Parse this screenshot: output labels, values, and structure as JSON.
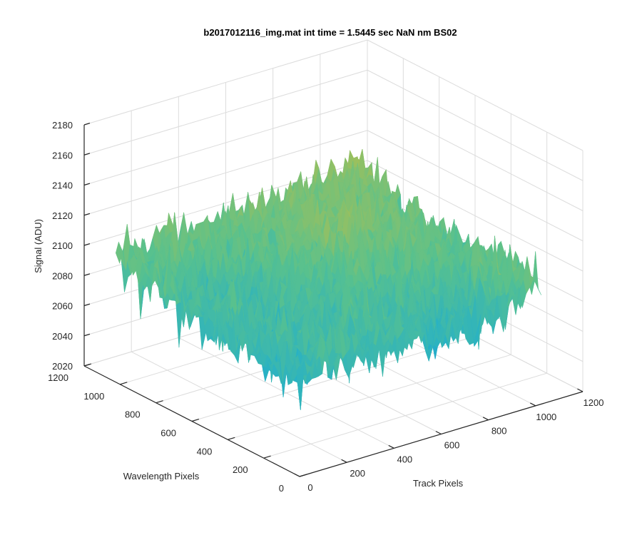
{
  "chart_data": {
    "type": "surface",
    "title": "b2017012116_img.mat int time = 1.5445 sec  NaN nm BS02",
    "xlabel": "Track Pixels",
    "ylabel": "Wavelength Pixels",
    "zlabel": "Signal (ADU)",
    "xlim": [
      0,
      1200
    ],
    "ylim": [
      0,
      1200
    ],
    "zlim": [
      2020,
      2180
    ],
    "x_ticks": [
      "0",
      "200",
      "400",
      "600",
      "800",
      "1000",
      "1200"
    ],
    "y_ticks": [
      "0",
      "200",
      "400",
      "600",
      "800",
      "1000",
      "1200"
    ],
    "z_ticks": [
      "2020",
      "2040",
      "2060",
      "2080",
      "2100",
      "2120",
      "2140",
      "2160",
      "2180"
    ],
    "grid": true,
    "colormap": "parula",
    "surface_extent": {
      "x": [
        0,
        1024
      ],
      "y": [
        0,
        1024
      ]
    },
    "signal_range": [
      2030,
      2170
    ],
    "signal_corners": {
      "x0_y0": 2080,
      "x1024_y0": 2095,
      "x0_y1024": 2100,
      "x1024_y1024": 2115
    }
  },
  "colors": {
    "axis": "#262626",
    "grid": "#dcdcdc",
    "background": "#ffffff",
    "colormap_stops": [
      "#0b66c6",
      "#1a94dc",
      "#27b1c6",
      "#58c18e",
      "#a0c05a",
      "#e8bc35",
      "#f5d82e"
    ]
  }
}
